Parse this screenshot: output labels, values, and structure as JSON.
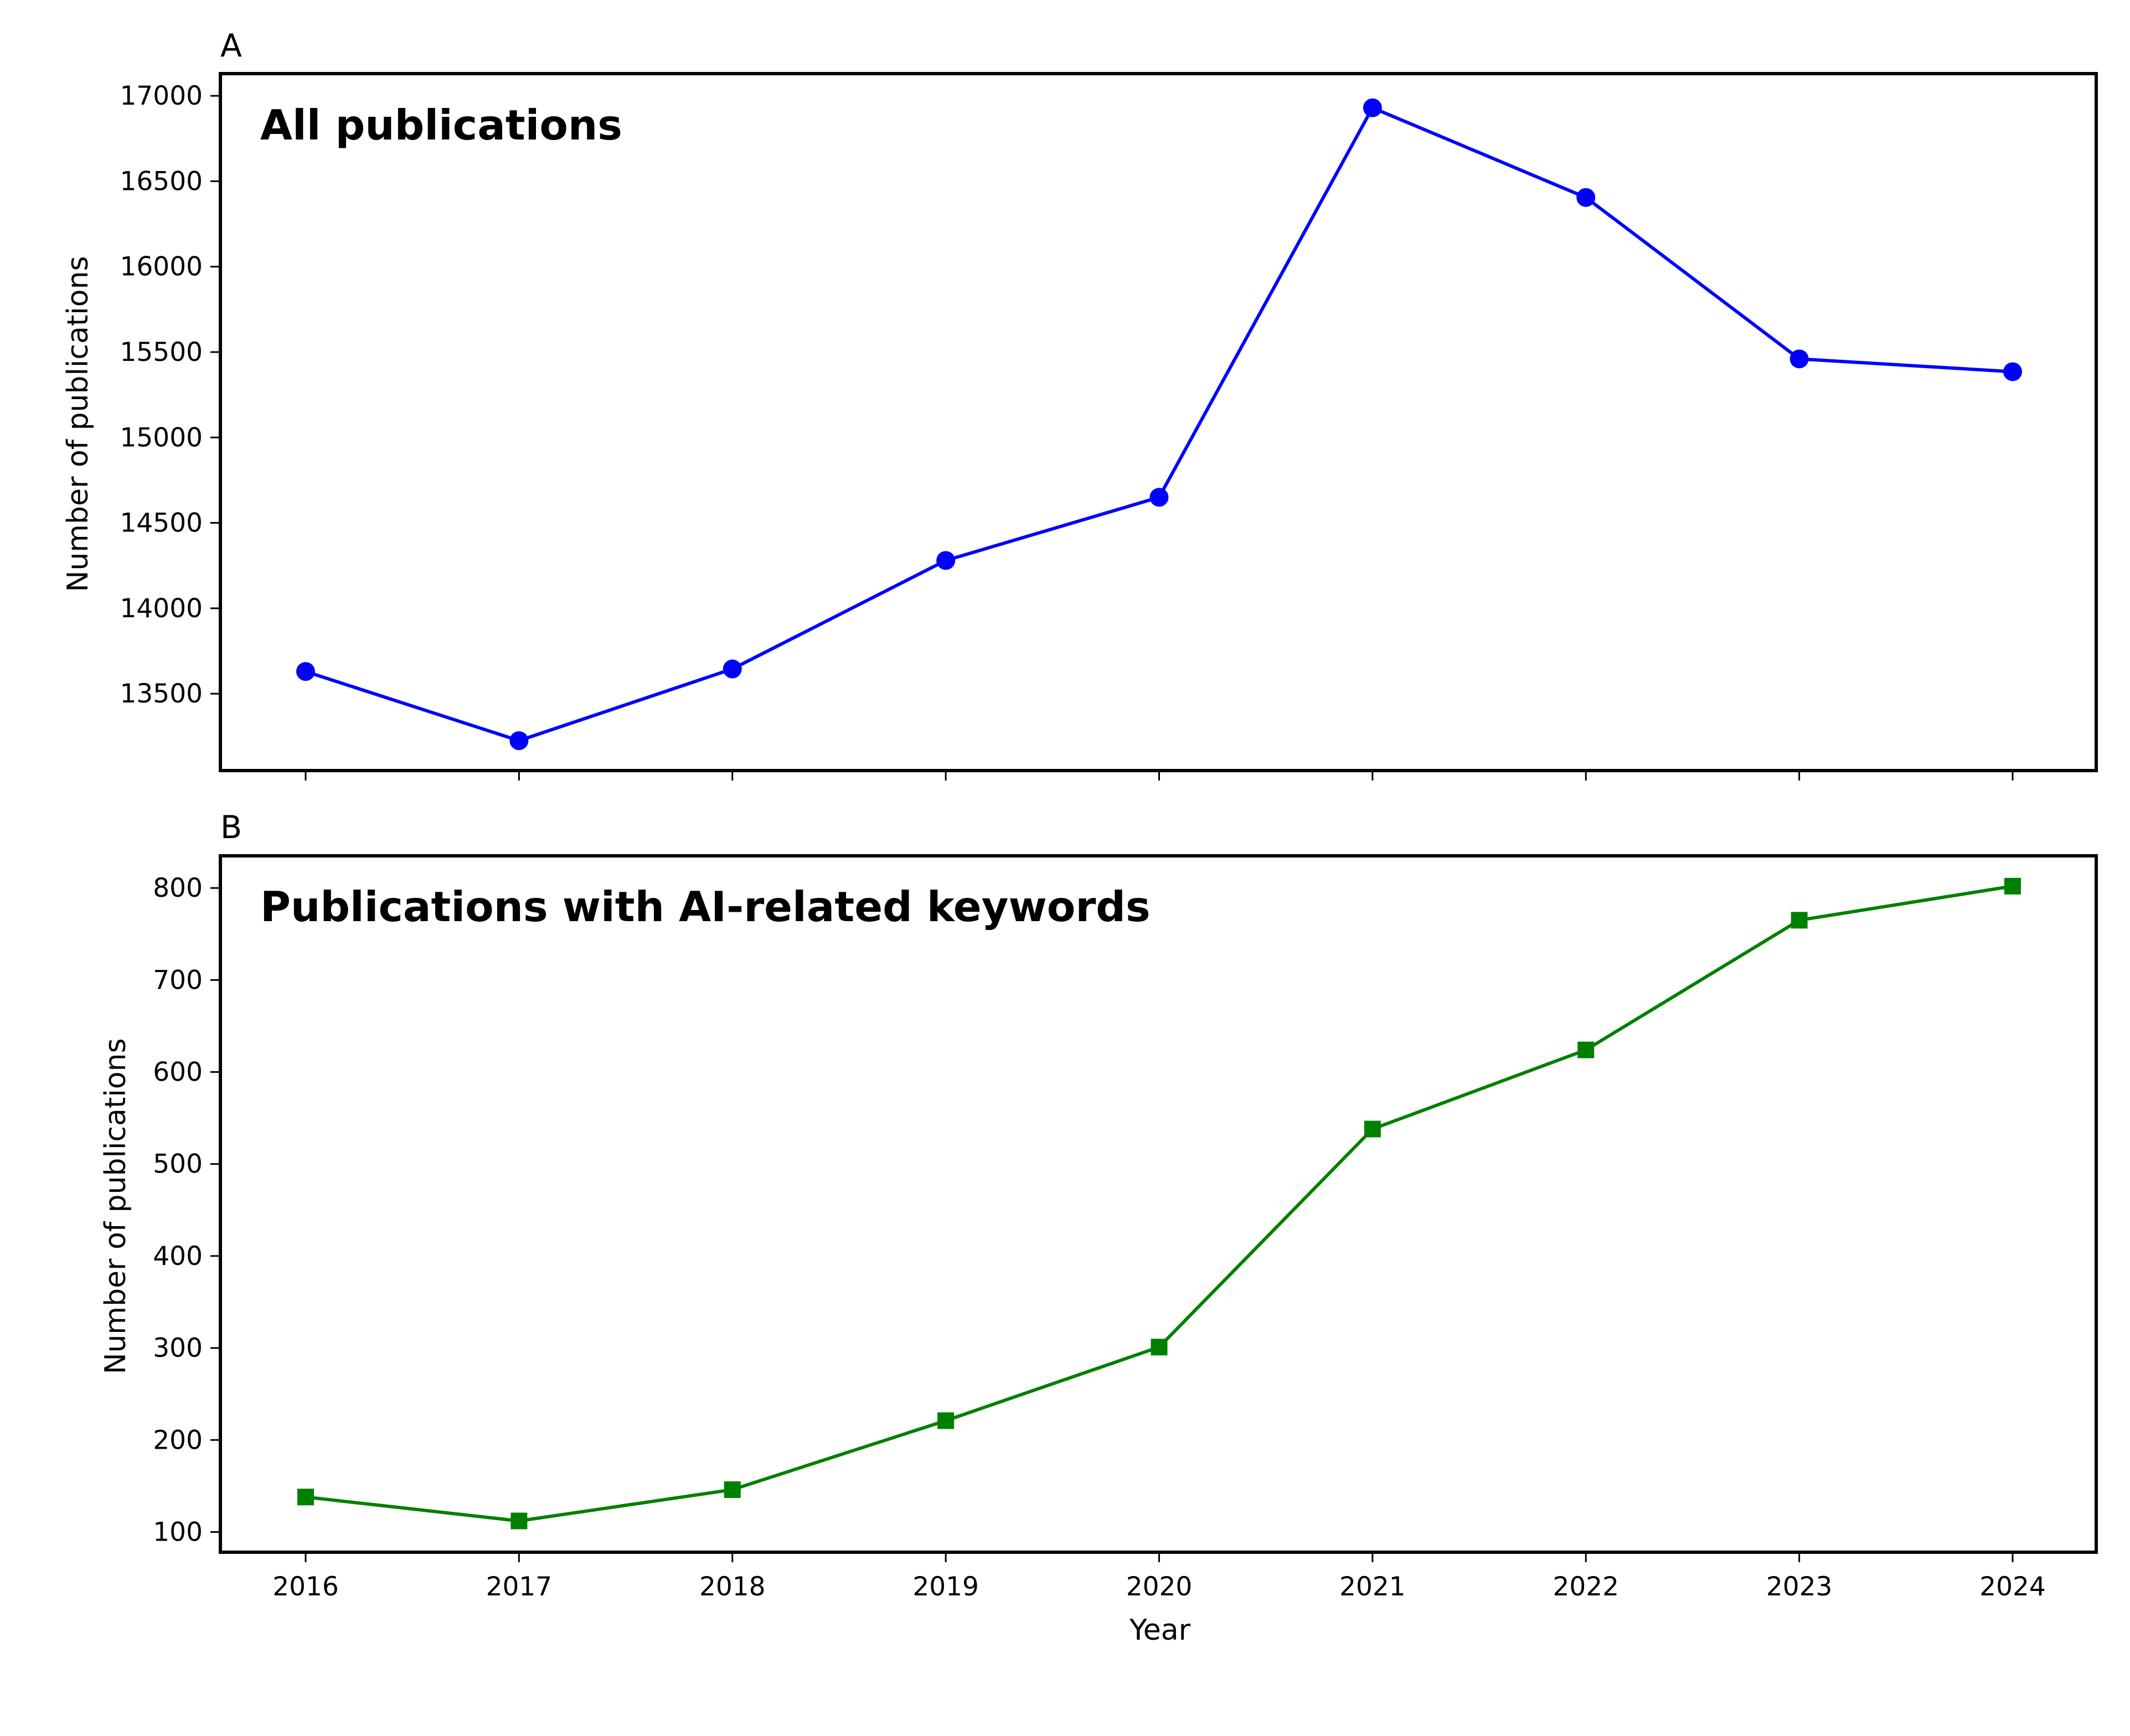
{
  "chart_data": [
    {
      "type": "line",
      "panel_label": "A",
      "title": "All publications",
      "xlabel": "",
      "ylabel": "Number of publications",
      "x": [
        2016,
        2017,
        2018,
        2019,
        2020,
        2021,
        2022,
        2023,
        2024
      ],
      "xticks": [
        "2016",
        "2017",
        "2018",
        "2019",
        "2020",
        "2021",
        "2022",
        "2023",
        "2024"
      ],
      "xtick_labels_visible": false,
      "ylim": [
        13050,
        17130
      ],
      "yticks": [
        13500,
        14000,
        14500,
        15000,
        15500,
        16000,
        16500,
        17000
      ],
      "grid": false,
      "series": [
        {
          "values": [
            13630,
            13225,
            13645,
            14280,
            14650,
            16930,
            16405,
            15460,
            15385
          ],
          "color": "#0000ff",
          "marker": "circle"
        }
      ]
    },
    {
      "type": "line",
      "panel_label": "B",
      "title": "Publications with AI-related keywords",
      "xlabel": "Year",
      "ylabel": "Number of publications",
      "x": [
        2016,
        2017,
        2018,
        2019,
        2020,
        2021,
        2022,
        2023,
        2024
      ],
      "xticks": [
        "2016",
        "2017",
        "2018",
        "2019",
        "2020",
        "2021",
        "2022",
        "2023",
        "2024"
      ],
      "xtick_labels_visible": true,
      "ylim": [
        78,
        835
      ],
      "yticks": [
        100,
        200,
        300,
        400,
        500,
        600,
        700,
        800
      ],
      "grid": false,
      "series": [
        {
          "values": [
            138,
            112,
            146,
            221,
            301,
            538,
            624,
            765,
            802
          ],
          "color": "#008000",
          "marker": "square"
        }
      ]
    }
  ]
}
